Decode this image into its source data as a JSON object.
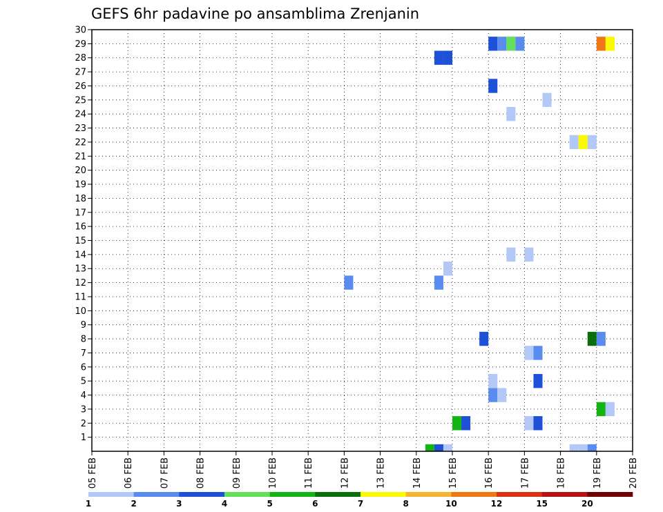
{
  "chart_data": {
    "type": "heatmap",
    "title": "GEFS 6hr padavine po ansamblima Zrenjanin",
    "x_ticks": [
      "05 FEB",
      "06 FEB",
      "07 FEB",
      "08 FEB",
      "09 FEB",
      "10 FEB",
      "11 FEB",
      "12 FEB",
      "13 FEB",
      "14 FEB",
      "15 FEB",
      "16 FEB",
      "17 FEB",
      "18 FEB",
      "19 FEB",
      "20 FEB"
    ],
    "y_ticks": [
      1,
      2,
      3,
      4,
      5,
      6,
      7,
      8,
      9,
      10,
      11,
      12,
      13,
      14,
      15,
      16,
      17,
      18,
      19,
      20,
      21,
      22,
      23,
      24,
      25,
      26,
      27,
      28,
      29,
      30
    ],
    "xlim": [
      0,
      15
    ],
    "ylim": [
      0,
      30
    ],
    "y_tick_min": 1,
    "grid": true,
    "colorbar": {
      "labels": [
        "1",
        "2",
        "3",
        "4",
        "5",
        "6",
        "7",
        "8",
        "10",
        "12",
        "15",
        "20"
      ],
      "colors": [
        "#b4c8f8",
        "#5a8cf0",
        "#1e50d8",
        "#64e05a",
        "#14b414",
        "#0a6e0a",
        "#fafa00",
        "#f5b432",
        "#f07814",
        "#dc3214",
        "#b41414",
        "#6e0000"
      ]
    },
    "cells": [
      {
        "member": 0,
        "t": 9.25,
        "c": 5
      },
      {
        "member": 0,
        "t": 9.5,
        "c": 3
      },
      {
        "member": 0,
        "t": 9.75,
        "c": 1
      },
      {
        "member": 0,
        "t": 13.25,
        "c": 1
      },
      {
        "member": 0,
        "t": 13.5,
        "c": 1
      },
      {
        "member": 0,
        "t": 13.75,
        "c": 2
      },
      {
        "member": 2,
        "t": 10.0,
        "c": 5
      },
      {
        "member": 2,
        "t": 10.25,
        "c": 3
      },
      {
        "member": 2,
        "t": 12.0,
        "c": 1
      },
      {
        "member": 2,
        "t": 12.25,
        "c": 3
      },
      {
        "member": 3,
        "t": 14.0,
        "c": 5
      },
      {
        "member": 3,
        "t": 14.25,
        "c": 1
      },
      {
        "member": 4,
        "t": 11.0,
        "c": 2
      },
      {
        "member": 4,
        "t": 11.25,
        "c": 1
      },
      {
        "member": 5,
        "t": 11.0,
        "c": 1
      },
      {
        "member": 5,
        "t": 12.25,
        "c": 3
      },
      {
        "member": 7,
        "t": 12.0,
        "c": 1
      },
      {
        "member": 7,
        "t": 12.25,
        "c": 2
      },
      {
        "member": 8,
        "t": 10.75,
        "c": 3
      },
      {
        "member": 8,
        "t": 13.75,
        "c": 6
      },
      {
        "member": 8,
        "t": 14.0,
        "c": 2
      },
      {
        "member": 12,
        "t": 7.0,
        "c": 2
      },
      {
        "member": 12,
        "t": 9.5,
        "c": 2
      },
      {
        "member": 13,
        "t": 9.75,
        "c": 1
      },
      {
        "member": 14,
        "t": 11.5,
        "c": 1
      },
      {
        "member": 14,
        "t": 12.0,
        "c": 1
      },
      {
        "member": 24,
        "t": 11.5,
        "c": 1
      },
      {
        "member": 25,
        "t": 12.5,
        "c": 1
      },
      {
        "member": 26,
        "t": 11.0,
        "c": 3
      },
      {
        "member": 22,
        "t": 13.25,
        "c": 1
      },
      {
        "member": 22,
        "t": 13.5,
        "c": 7
      },
      {
        "member": 22,
        "t": 13.75,
        "c": 1
      },
      {
        "member": 28,
        "t": 9.5,
        "c": 3
      },
      {
        "member": 28,
        "t": 9.75,
        "c": 3
      },
      {
        "member": 29,
        "t": 11.0,
        "c": 3
      },
      {
        "member": 29,
        "t": 11.25,
        "c": 2
      },
      {
        "member": 29,
        "t": 11.5,
        "c": 4
      },
      {
        "member": 29,
        "t": 11.75,
        "c": 2
      },
      {
        "member": 29,
        "t": 14.0,
        "c": 9
      },
      {
        "member": 29,
        "t": 14.25,
        "c": 7
      }
    ]
  }
}
